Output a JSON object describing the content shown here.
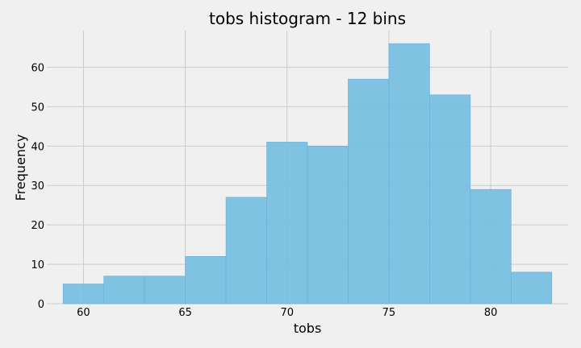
{
  "chart_data": {
    "type": "bar",
    "title": "tobs histogram - 12 bins",
    "xlabel": "tobs",
    "ylabel": "Frequency",
    "bin_edges": [
      59,
      61,
      63,
      65,
      67,
      69,
      71,
      73,
      75,
      77,
      79,
      81,
      83
    ],
    "values": [
      5,
      7,
      7,
      12,
      27,
      41,
      40,
      57,
      66,
      53,
      29,
      8
    ],
    "xlim": [
      58.2,
      83.8
    ],
    "ylim": [
      0,
      69.3
    ],
    "xticks": [
      60,
      65,
      70,
      75,
      80
    ],
    "yticks": [
      0,
      10,
      20,
      30,
      40,
      50,
      60
    ],
    "grid": true,
    "bar_color": "#75bee1",
    "background_color": "#f0f0f0",
    "grid_color": "#cbcbcb"
  }
}
